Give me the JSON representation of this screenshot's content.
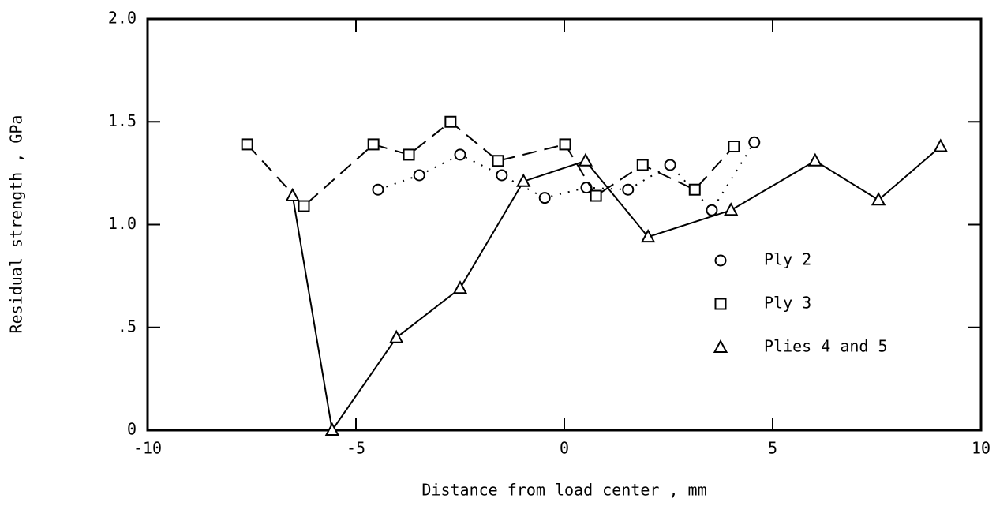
{
  "chart_data": {
    "type": "line",
    "x_label": "Distance from load center , mm",
    "y_label": "Residual strength , GPa",
    "xlim": [
      -10,
      10
    ],
    "xticks": [
      -10,
      -5,
      0,
      5,
      10
    ],
    "ylim": [
      0,
      2.0
    ],
    "yticks": [
      0,
      {
        "value": 0.5,
        "label": ".5"
      },
      {
        "value": 1.0,
        "label": "1.0"
      },
      {
        "value": 1.5,
        "label": "1.5"
      },
      {
        "value": 2.0,
        "label": "2.0"
      }
    ],
    "grid": false,
    "legend": "right",
    "series": [
      {
        "name": "Ply 2",
        "color": "#000000",
        "marker": "circle",
        "line": "dotted",
        "x": [
          -4.47,
          -3.48,
          -2.5,
          -1.5,
          -0.47,
          0.53,
          1.53,
          2.54,
          3.54,
          4.56
        ],
        "values": [
          1.17,
          1.24,
          1.34,
          1.24,
          1.13,
          1.18,
          1.17,
          1.29,
          1.07,
          1.4
        ]
      },
      {
        "name": "Ply 3",
        "color": "#000000",
        "marker": "square",
        "line": "dashed",
        "x": [
          -7.61,
          -6.25,
          -4.58,
          -3.73,
          -2.73,
          -1.59,
          0.02,
          0.76,
          1.88,
          3.13,
          4.07
        ],
        "values": [
          1.39,
          1.09,
          1.39,
          1.34,
          1.5,
          1.31,
          1.39,
          1.14,
          1.29,
          1.17,
          1.38
        ]
      },
      {
        "name": "Plies 4 and 5",
        "color": "#000000",
        "marker": "triangle",
        "line": "solid",
        "x": [
          -6.52,
          -5.57,
          -4.03,
          -2.5,
          -0.98,
          0.51,
          2.01,
          4.0,
          6.02,
          7.54,
          9.03
        ],
        "values": [
          1.14,
          0,
          0.45,
          0.69,
          1.21,
          1.31,
          0.94,
          1.07,
          1.31,
          1.12,
          1.38
        ]
      }
    ]
  }
}
